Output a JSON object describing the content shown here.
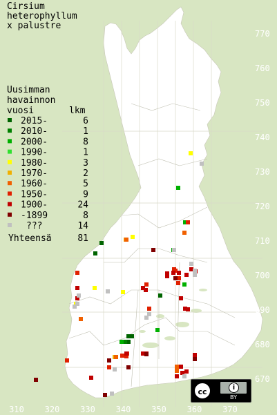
{
  "title_lines": [
    "Cirsium",
    "heterophyllum",
    "x palustre"
  ],
  "legend": {
    "header_lines": [
      "Uusimman",
      "havainnon"
    ],
    "col_year": "vuosi",
    "col_count": "lkm",
    "items": [
      {
        "label": "2015-",
        "count": "6",
        "color": "#006400"
      },
      {
        "label": "2010-",
        "count": "1",
        "color": "#008000"
      },
      {
        "label": "2000-",
        "count": "8",
        "color": "#00b000"
      },
      {
        "label": "1990-",
        "count": "1",
        "color": "#30e030"
      },
      {
        "label": "1980-",
        "count": "3",
        "color": "#ffff00"
      },
      {
        "label": "1970-",
        "count": "2",
        "color": "#f0b000"
      },
      {
        "label": "1960-",
        "count": "5",
        "color": "#f06000"
      },
      {
        "label": "1950-",
        "count": "9",
        "color": "#e02000"
      },
      {
        "label": "1900-",
        "count": "24",
        "color": "#c00000"
      },
      {
        "label": "-1899",
        "count": "8",
        "color": "#800000"
      },
      {
        "label": "???",
        "count": "14",
        "color": "#c0c0c0"
      }
    ],
    "total_label": "Yhteensä",
    "total_count": "81"
  },
  "x_axis_labels": [
    "310",
    "320",
    "330",
    "340",
    "350",
    "360",
    "370"
  ],
  "y_axis_labels": [
    "770",
    "760",
    "750",
    "740",
    "730",
    "720",
    "710",
    "700",
    "690",
    "680",
    "670"
  ],
  "license_badge": {
    "cc": "cc",
    "by": "BY"
  },
  "colors": {
    "land": "#ffffff",
    "sea": "#d8e6c2",
    "grid": "#d9d9c9"
  }
}
